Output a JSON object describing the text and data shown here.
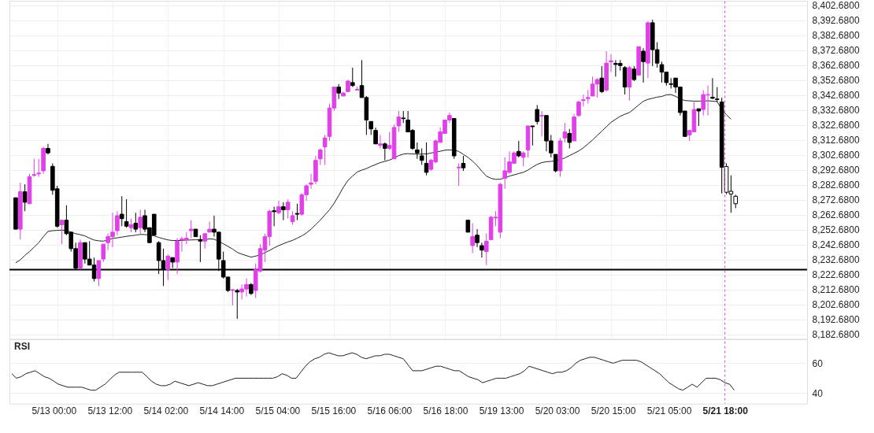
{
  "chart_data": [
    {
      "type": "candlestick",
      "categories": [
        null,
        null,
        null,
        null,
        null,
        null,
        null,
        null,
        null,
        null,
        null,
        null,
        null,
        null,
        null,
        null,
        null,
        null,
        null,
        null,
        null,
        null,
        null,
        null,
        null,
        null,
        null,
        null,
        null,
        null,
        null,
        null,
        null,
        null,
        null,
        null,
        null,
        null,
        null,
        null,
        null,
        null,
        null,
        null,
        null,
        null,
        null,
        null,
        null,
        null,
        null,
        null,
        null,
        null,
        null,
        null,
        null,
        null,
        null,
        null,
        null,
        null,
        null,
        null,
        null,
        null,
        null,
        null,
        null,
        null,
        null,
        null,
        null,
        null,
        null,
        null,
        null,
        null,
        null,
        null,
        null,
        null,
        null,
        null,
        null,
        null,
        null,
        null,
        null,
        null,
        null,
        null,
        null,
        null,
        null,
        null,
        null,
        null,
        null,
        null,
        null,
        null,
        null,
        null,
        null,
        null,
        null,
        null,
        null,
        null,
        null,
        null,
        null,
        null,
        null,
        null,
        null,
        null,
        null,
        null,
        null,
        null,
        null,
        null,
        null,
        null,
        null,
        null,
        null,
        null,
        null,
        null,
        null,
        null,
        null,
        null,
        null,
        null,
        null,
        null,
        null,
        null,
        null,
        null,
        null,
        null,
        null,
        null,
        null,
        null,
        null,
        null,
        null,
        null,
        null,
        null,
        null
      ],
      "ohlc": [
        [
          8274,
          8274,
          8253,
          8253
        ],
        [
          8253,
          8284,
          8246,
          8278
        ],
        [
          8278,
          8283,
          8265,
          8271
        ],
        [
          8270,
          8290,
          8270,
          8288
        ],
        [
          8289,
          8300,
          8288,
          8289.5
        ],
        [
          8290,
          8300,
          8288,
          8290.5
        ],
        [
          8292,
          8308,
          8290,
          8307
        ],
        [
          8307,
          8310,
          8303,
          8304
        ],
        [
          8295,
          8297,
          8276,
          8279
        ],
        [
          8280,
          8282,
          8254,
          8255
        ],
        [
          8256,
          8259,
          8243,
          8259
        ],
        [
          8259,
          8269,
          8249,
          8250
        ],
        [
          8251,
          8251,
          8238,
          8240
        ],
        [
          8240,
          8244,
          8226,
          8227
        ],
        [
          8227,
          8246,
          8226,
          8244
        ],
        [
          8244,
          8244,
          8230,
          8233
        ],
        [
          8233,
          8245,
          8229,
          8229
        ],
        [
          8229,
          8234,
          8218,
          8220
        ],
        [
          8220,
          8232,
          8215,
          8232
        ],
        [
          8233,
          8243,
          8231,
          8243
        ],
        [
          8244,
          8250,
          8239,
          8248
        ],
        [
          8248,
          8264,
          8241,
          8251
        ],
        [
          8252,
          8265,
          8249,
          8262
        ],
        [
          8263,
          8275,
          8255,
          8260
        ],
        [
          8258,
          8273,
          8254,
          8255
        ],
        [
          8254,
          8260,
          8251,
          8256
        ],
        [
          8257,
          8264,
          8251,
          8253
        ],
        [
          8254,
          8266,
          8250,
          8261
        ],
        [
          8262,
          8266,
          8251,
          8253
        ],
        [
          8254,
          8254,
          8244,
          8244
        ],
        [
          8263,
          8263,
          8249,
          8249
        ],
        [
          8244,
          8245,
          8223,
          8232
        ],
        [
          8232,
          8240,
          8215,
          8226
        ],
        [
          8226,
          8236,
          8219,
          8235
        ],
        [
          8234,
          8234,
          8227,
          8231
        ],
        [
          8231,
          8247,
          8223,
          8245
        ],
        [
          8246,
          8248,
          8238,
          8246.5
        ],
        [
          8246,
          8251,
          8243,
          8247
        ],
        [
          8252,
          8259,
          8247,
          8253
        ],
        [
          8253,
          8253,
          8248,
          8248
        ],
        [
          8246,
          8249,
          8231,
          8245
        ],
        [
          8245,
          8250,
          8240,
          8250
        ],
        [
          8251,
          8258,
          8251,
          8253
        ],
        [
          8253,
          8262,
          8248,
          8251
        ],
        [
          8251,
          8251,
          8225,
          8233
        ],
        [
          8232,
          8238,
          8220,
          8221
        ],
        [
          8221,
          8221,
          8211,
          8212
        ],
        [
          8212,
          8213,
          8202,
          8212.5
        ],
        [
          8212,
          8213,
          8193,
          8211
        ],
        [
          8211,
          8216,
          8206,
          8213
        ],
        [
          8213,
          8220,
          8208,
          8216
        ],
        [
          8216,
          8217,
          8209,
          8210
        ],
        [
          8212,
          8230,
          8207,
          8226
        ],
        [
          8225,
          8243,
          8224,
          8240
        ],
        [
          8239,
          8250,
          8231,
          8248
        ],
        [
          8248,
          8266,
          8242,
          8265
        ],
        [
          8265.3,
          8268,
          8255,
          8264.7
        ],
        [
          8264,
          8272,
          8263,
          8268
        ],
        [
          8268,
          8271,
          8259,
          8266
        ],
        [
          8266,
          8273,
          8260,
          8271
        ],
        [
          8258,
          8265,
          8256,
          8262
        ],
        [
          8263.5,
          8270,
          8259,
          8263
        ],
        [
          8263,
          8277,
          8262,
          8276
        ],
        [
          8276,
          8283,
          8272,
          8282
        ],
        [
          8283,
          8290,
          8280,
          8284
        ],
        [
          8285,
          8302,
          8283,
          8299
        ],
        [
          8300,
          8307,
          8296,
          8306
        ],
        [
          8308,
          8316,
          8296,
          8314
        ],
        [
          8315,
          8337,
          8312,
          8334
        ],
        [
          8334,
          8348,
          8332,
          8348
        ],
        [
          8348,
          8350,
          8340,
          8344
        ],
        [
          8342,
          8345,
          8342,
          8344
        ],
        [
          8345,
          8353,
          8345,
          8352
        ],
        [
          8351,
          8361,
          8348,
          8349
        ],
        [
          8346,
          8348.3,
          8345.7,
          8346.5
        ],
        [
          8349,
          8366,
          8341,
          8341
        ],
        [
          8341,
          8342,
          8316,
          8326
        ],
        [
          8325,
          8325,
          8316,
          8320
        ],
        [
          8319,
          8321,
          8310,
          8310
        ],
        [
          8309,
          8316,
          8307,
          8310
        ],
        [
          8310,
          8311,
          8299,
          8307
        ],
        [
          8307,
          8318,
          8306,
          8309
        ],
        [
          8300,
          8323,
          8300,
          8321
        ],
        [
          8322,
          8332,
          8318,
          8328
        ],
        [
          8327.3,
          8332,
          8324,
          8326.9
        ],
        [
          8326,
          8332,
          8318,
          8318
        ],
        [
          8319,
          8320,
          8306,
          8307
        ],
        [
          8306,
          8311,
          8300,
          8304
        ],
        [
          8302,
          8307,
          8296,
          8299
        ],
        [
          8297,
          8311,
          8289,
          8291
        ],
        [
          8293,
          8300,
          8292,
          8299
        ],
        [
          8298,
          8313,
          8297,
          8312
        ],
        [
          8311,
          8321,
          8311,
          8318
        ],
        [
          8317,
          8326,
          8317,
          8326
        ],
        [
          8326,
          8331,
          8324,
          8329
        ],
        [
          8327,
          8327,
          8300,
          8302
        ],
        [
          8294,
          8297,
          8282,
          8294.5
        ],
        [
          8297,
          8302,
          8292,
          8294
        ],
        [
          8259,
          8259,
          8251,
          8251
        ],
        [
          8242,
          8257,
          8237,
          8248
        ],
        [
          8249,
          8253,
          8241,
          8244
        ],
        [
          8242,
          8244,
          8234,
          8239
        ],
        [
          8238,
          8250,
          8229,
          8245
        ],
        [
          8246,
          8262,
          8246,
          8261
        ],
        [
          8260.5,
          8265,
          8255,
          8261
        ],
        [
          8251,
          8284,
          8247,
          8283
        ],
        [
          8287,
          8301,
          8280,
          8292
        ],
        [
          8291,
          8305,
          8290,
          8298
        ],
        [
          8297,
          8305,
          8297,
          8304
        ],
        [
          8305,
          8312,
          8301,
          8302
        ],
        [
          8301,
          8305,
          8295,
          8304
        ],
        [
          8306,
          8322,
          8301,
          8322
        ],
        [
          8322,
          8322,
          8309,
          8321.5
        ],
        [
          8333,
          8336,
          8323,
          8325
        ],
        [
          8328.6,
          8332,
          8315,
          8329
        ],
        [
          8329,
          8329,
          8305,
          8312
        ],
        [
          8312,
          8316,
          8301,
          8304
        ],
        [
          8303,
          8303,
          8291,
          8292
        ],
        [
          8292,
          8314,
          8288,
          8312
        ],
        [
          8314,
          8324,
          8311,
          8318
        ],
        [
          8317,
          8320,
          8307,
          8311
        ],
        [
          8312,
          8330,
          8312,
          8328
        ],
        [
          8329,
          8339,
          8328,
          8338
        ],
        [
          8339,
          8343,
          8335,
          8339.5
        ],
        [
          8340.3,
          8346,
          8337,
          8341
        ],
        [
          8342,
          8355,
          8342,
          8350
        ],
        [
          8350,
          8354,
          8341,
          8353
        ],
        [
          8354,
          8362,
          8344,
          8345
        ],
        [
          8346,
          8372,
          8345,
          8364
        ],
        [
          8364.8,
          8370,
          8358,
          8365.6
        ],
        [
          8363.8,
          8366,
          8355,
          8363.1
        ],
        [
          8363.8,
          8366,
          8359,
          8362.4
        ],
        [
          8361,
          8362,
          8343,
          8348
        ],
        [
          8348,
          8362,
          8339,
          8361
        ],
        [
          8360,
          8362,
          8352,
          8353
        ],
        [
          8356,
          8375,
          8356,
          8375
        ],
        [
          8372,
          8374,
          8351,
          8365
        ],
        [
          8364,
          8392,
          8354,
          8391
        ],
        [
          8391,
          8393,
          8362,
          8373
        ],
        [
          8373,
          8378,
          8361,
          8364
        ],
        [
          8363,
          8365,
          8351,
          8358
        ],
        [
          8358,
          8358,
          8349,
          8351
        ],
        [
          8350.2,
          8354,
          8347,
          8349.8
        ],
        [
          8354,
          8354,
          8344,
          8348
        ],
        [
          8348,
          8348,
          8329,
          8331
        ],
        [
          8332,
          8332,
          8315,
          8315
        ],
        [
          8316,
          8319,
          8312,
          8319
        ],
        [
          8318,
          8338,
          8318,
          8333
        ],
        [
          8333.5,
          8333.5,
          8322,
          8332
        ],
        [
          8333,
          8346,
          8329,
          8343
        ],
        [
          8342.7,
          8349,
          8329,
          8343
        ],
        [
          8341.2,
          8354,
          8340,
          8340.5
        ],
        [
          8340,
          8348,
          8338,
          8339.7
        ],
        [
          8338,
          8340.9,
          8276.9,
          8294.4
        ],
        [
          8277.7,
          8297,
          8276.3,
          8294.9
        ],
        [
          8276.5,
          8289,
          8264,
          8278.3
        ],
        [
          8270,
          8276,
          8267,
          8275
        ]
      ],
      "colors": [
        "#000000",
        "#e040e8",
        "#000000",
        "#e040e8",
        "#e040e8",
        "#e040e8",
        "#e040e8",
        "#000000",
        "#000000",
        "#000000",
        "#e040e8",
        "#000000",
        "#000000",
        "#000000",
        "#e040e8",
        "#000000",
        "#000000",
        "#000000",
        "#e040e8",
        "#e040e8",
        "#e040e8",
        "#e040e8",
        "#e040e8",
        "#000000",
        "#000000",
        "#e040e8",
        "#000000",
        "#e040e8",
        "#000000",
        "#000000",
        "#000000",
        "#000000",
        "#000000",
        "#e040e8",
        "#000000",
        "#e040e8",
        "#e040e8",
        "#e040e8",
        "#e040e8",
        "#000000",
        "#000000",
        "#e040e8",
        "#e040e8",
        "#000000",
        "#000000",
        "#000000",
        "#000000",
        "#e040e8",
        "#000000",
        "#e040e8",
        "#e040e8",
        "#000000",
        "#e040e8",
        "#e040e8",
        "#e040e8",
        "#e040e8",
        "#000000",
        "#e040e8",
        "#000000",
        "#e040e8",
        "#e040e8",
        "#000000",
        "#e040e8",
        "#e040e8",
        "#e040e8",
        "#e040e8",
        "#e040e8",
        "#e040e8",
        "#e040e8",
        "#e040e8",
        "#000000",
        "#e040e8",
        "#e040e8",
        "#000000",
        "#e040e8",
        "#000000",
        "#000000",
        "#000000",
        "#000000",
        "#e040e8",
        "#000000",
        "#e040e8",
        "#e040e8",
        "#e040e8",
        "#000000",
        "#000000",
        "#000000",
        "#000000",
        "#000000",
        "#000000",
        "#e040e8",
        "#e040e8",
        "#e040e8",
        "#e040e8",
        "#e040e8",
        "#000000",
        "#e040e8",
        "#000000",
        "#000000",
        "#e040e8",
        "#000000",
        "#000000",
        "#e040e8",
        "#e040e8",
        "#e040e8",
        "#e040e8",
        "#e040e8",
        "#e040e8",
        "#e040e8",
        "#000000",
        "#e040e8",
        "#e040e8",
        "#000000",
        "#000000",
        "#e040e8",
        "#000000",
        "#000000",
        "#000000",
        "#e040e8",
        "#e040e8",
        "#000000",
        "#e040e8",
        "#e040e8",
        "#e040e8",
        "#e040e8",
        "#e040e8",
        "#e040e8",
        "#000000",
        "#e040e8",
        "#e040e8",
        "#000000",
        "#000000",
        "#000000",
        "#e040e8",
        "#000000",
        "#e040e8",
        "#000000",
        "#e040e8",
        "#000000",
        "#000000",
        "#000000",
        "#000000",
        "#000000",
        "#000000",
        "#000000",
        "#000000",
        "#e040e8",
        "#e040e8",
        "#000000",
        "#e040e8",
        "#e040e8",
        "#000000",
        "#000000",
        "#000000",
        "#ffffff",
        "#ffffff",
        "#ffffff"
      ],
      "series": [
        {
          "type": "line",
          "color": "#222222",
          "values": [
            8230.5,
            8232.5,
            8235.5,
            8238,
            8241,
            8244,
            8248,
            8251.5,
            8252,
            8252.2,
            8252.4,
            8252,
            8251,
            8250,
            8249.3,
            8248.5,
            8247,
            8245.7,
            8245.2,
            8245,
            8245.8,
            8246.8,
            8247.2,
            8247.7,
            8248.2,
            8248.6,
            8249,
            8249.5,
            8249.4,
            8249.1,
            8248.5,
            8247.5,
            8246.6,
            8245.8,
            8245.4,
            8245.4,
            8245.5,
            8245.7,
            8245.8,
            8245.9,
            8246,
            8246,
            8246.5,
            8246.3,
            8244.8,
            8243.2,
            8241.5,
            8239.7,
            8237.5,
            8236.3,
            8235.3,
            8234.3,
            8235,
            8235.8,
            8237.3,
            8238.8,
            8240.5,
            8242,
            8243.3,
            8244.5,
            8245.5,
            8247,
            8248.5,
            8250.5,
            8253,
            8256,
            8259,
            8262.5,
            8266,
            8270.3,
            8275.5,
            8281,
            8285.6,
            8288.5,
            8291.2,
            8292.5,
            8293.5,
            8295,
            8296.2,
            8297.5,
            8298.3,
            8299.2,
            8300.6,
            8302.2,
            8303.2,
            8303.5,
            8303.3,
            8303.2,
            8303.2,
            8303.3,
            8303.9,
            8304.5,
            8305.1,
            8305.8,
            8306,
            8305.8,
            8305,
            8303,
            8301,
            8298.5,
            8295.5,
            8291.8,
            8288.5,
            8287,
            8286.3,
            8286.4,
            8287.2,
            8288.5,
            8289.3,
            8290.2,
            8291,
            8292.5,
            8294.5,
            8296.3,
            8297.5,
            8298.1,
            8298.3,
            8298.7,
            8299.5,
            8300.6,
            8302.2,
            8303.7,
            8305.3,
            8307.4,
            8310,
            8312.6,
            8315.6,
            8318.5,
            8321.5,
            8324.4,
            8326.5,
            8328.5,
            8329.8,
            8331,
            8333.5,
            8336,
            8338.5,
            8339.8,
            8340.5,
            8341.3,
            8341.7,
            8342.8,
            8343,
            8341.8,
            8340,
            8339,
            8338.8,
            8338.6,
            8338.6,
            8338.7,
            8338.8,
            8338.6,
            8338.3,
            8333,
            8329.5,
            8326.5,
            null
          ]
        }
      ],
      "ylim": [
        8179.68,
        8405.68
      ],
      "yticks": [
        {
          "value": 8182.68,
          "label": "8,182.6800"
        },
        {
          "value": 8192.68,
          "label": "8,192.6800"
        },
        {
          "value": 8202.68,
          "label": "8,202.6800"
        },
        {
          "value": 8212.68,
          "label": "8,212.6800"
        },
        {
          "value": 8222.68,
          "label": "8,222.6800"
        },
        {
          "value": 8232.68,
          "label": "8,232.6800"
        },
        {
          "value": 8242.68,
          "label": "8,242.6800"
        },
        {
          "value": 8252.68,
          "label": "8,252.6800"
        },
        {
          "value": 8262.68,
          "label": "8,262.6800"
        },
        {
          "value": 8272.68,
          "label": "8,272.6800"
        },
        {
          "value": 8282.68,
          "label": "8,282.6800"
        },
        {
          "value": 8292.68,
          "label": "8,292.6800"
        },
        {
          "value": 8302.68,
          "label": "8,302.6800"
        },
        {
          "value": 8312.68,
          "label": "8,312.6800"
        },
        {
          "value": 8322.68,
          "label": "8,322.6800"
        },
        {
          "value": 8332.68,
          "label": "8,332.6800"
        },
        {
          "value": 8342.68,
          "label": "8,342.6800"
        },
        {
          "value": 8352.68,
          "label": "8,352.6800"
        },
        {
          "value": 8362.68,
          "label": "8,362.6800"
        },
        {
          "value": 8372.68,
          "label": "8,372.6800"
        },
        {
          "value": 8382.68,
          "label": "8,382.6800"
        },
        {
          "value": 8392.68,
          "label": "8,392.6800"
        },
        {
          "value": 8402.68,
          "label": "8,402.6800"
        }
      ],
      "ref_lines": [
        {
          "axis": "y",
          "value": 8226,
          "color": "#000000"
        }
      ],
      "grid": true,
      "tick_labels": "y"
    },
    {
      "type": "line",
      "title": "RSI",
      "categories": [
        null,
        null,
        null,
        null,
        null,
        null,
        null,
        null,
        null,
        "5/13 00:00",
        null,
        null,
        null,
        null,
        null,
        null,
        null,
        null,
        null,
        null,
        null,
        "5/13 12:00",
        null,
        null,
        null,
        null,
        null,
        null,
        null,
        null,
        null,
        null,
        null,
        "5/14 02:00",
        null,
        null,
        null,
        null,
        null,
        null,
        null,
        null,
        null,
        null,
        null,
        "5/14 14:00",
        null,
        null,
        null,
        null,
        null,
        null,
        null,
        null,
        null,
        null,
        null,
        "5/15 04:00",
        null,
        null,
        null,
        null,
        null,
        null,
        null,
        null,
        null,
        null,
        null,
        "5/15 16:00",
        null,
        null,
        null,
        null,
        null,
        null,
        null,
        null,
        null,
        null,
        null,
        "5/16 06:00",
        null,
        null,
        null,
        null,
        null,
        null,
        null,
        null,
        null,
        null,
        null,
        "5/16 18:00",
        null,
        null,
        null,
        null,
        null,
        null,
        null,
        null,
        null,
        null,
        null,
        "5/19 13:00",
        null,
        null,
        null,
        null,
        null,
        null,
        null,
        null,
        null,
        null,
        null,
        "5/20 03:00",
        null,
        null,
        null,
        null,
        null,
        null,
        null,
        null,
        null,
        null,
        null,
        "5/20 15:00",
        null,
        null,
        null,
        null,
        null,
        null,
        null,
        null,
        null,
        null,
        null,
        "5/21 05:00",
        null,
        null,
        null,
        null,
        null,
        null,
        null,
        null,
        null,
        null,
        null,
        "5/21 18:00",
        null,
        null,
        null
      ],
      "series": [
        {
          "color": "#222222",
          "values": [
            53,
            50,
            51,
            53,
            54,
            55,
            53,
            51,
            50,
            48,
            46,
            45,
            44,
            44,
            44,
            44,
            43,
            42,
            42,
            44,
            46,
            49,
            52,
            54,
            54,
            54,
            54,
            54,
            54,
            51,
            48,
            46,
            45,
            45,
            46,
            48,
            47,
            46,
            45,
            46,
            47,
            46,
            45,
            45,
            46,
            47,
            48,
            49,
            50,
            50,
            50,
            50,
            50,
            50,
            50,
            50,
            50,
            51,
            53,
            52,
            50,
            50,
            54,
            58,
            61,
            63,
            64,
            66,
            67,
            66,
            65,
            65,
            66,
            67,
            66,
            64,
            63,
            64,
            65,
            65,
            66,
            66,
            65,
            64,
            63,
            59,
            55,
            55,
            55,
            56,
            57,
            58,
            58,
            57,
            56,
            55,
            55,
            53,
            51,
            50,
            49,
            47,
            48,
            49,
            50,
            50,
            50,
            51,
            52,
            53,
            55,
            58,
            57,
            56,
            55,
            54,
            53,
            54,
            54,
            55,
            57,
            60,
            62,
            63,
            64,
            64,
            63,
            62,
            61,
            60,
            61,
            62,
            62,
            62,
            62,
            61,
            59,
            57,
            55,
            53,
            50,
            47,
            45,
            43,
            42,
            44,
            46,
            44,
            47,
            50,
            50,
            50,
            49,
            47,
            46,
            42,
            null
          ]
        }
      ],
      "ylim": [
        33,
        76
      ],
      "yticks": [
        40,
        60
      ],
      "ref_lines": [
        {
          "axis": "x",
          "value": "5/21 18:00",
          "color": "#e040e8",
          "line_style": "dashed"
        }
      ],
      "grid": "y"
    }
  ]
}
